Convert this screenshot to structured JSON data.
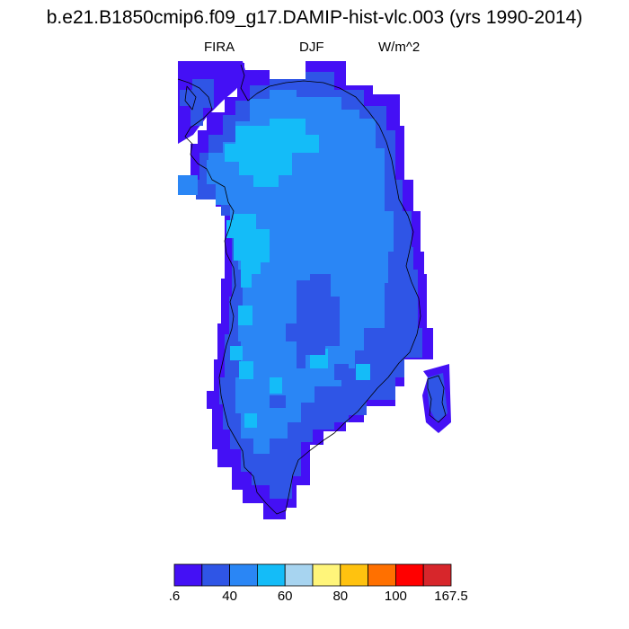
{
  "title": "b.e21.B1850cmip6.f09_g17.DAMIP-hist-vlc.003 (yrs 1990-2014)",
  "subtitle_left": "FIRA",
  "subtitle_center": "DJF",
  "subtitle_right": "W/m^2",
  "colorbar": {
    "colors": [
      "#4410f5",
      "#2f55e6",
      "#2a86f5",
      "#14bcf8",
      "#a7d4f0",
      "#fff57a",
      "#ffc20f",
      "#ff7000",
      "#ff0000",
      "#d7262b"
    ],
    "labels": [
      ".6",
      "40",
      "60",
      "80",
      "100",
      "167.5"
    ],
    "label_edges": [
      0,
      2,
      4,
      6,
      8,
      10
    ]
  },
  "map": {
    "region": "Greenland",
    "field": "FIRA",
    "season": "DJF",
    "units": "W/m^2"
  }
}
